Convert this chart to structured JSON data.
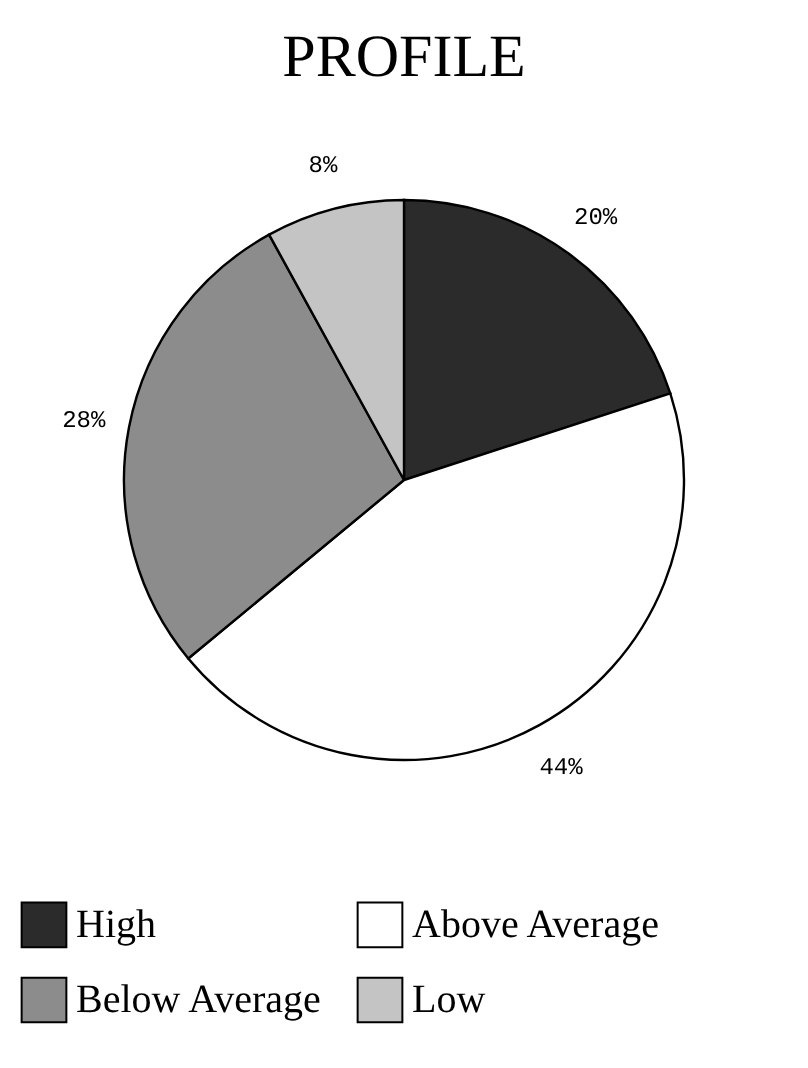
{
  "chart_data": {
    "type": "pie",
    "title": "PROFILE",
    "categories": [
      "High",
      "Above Average",
      "Below Average",
      "Low"
    ],
    "values": [
      20,
      44,
      28,
      8
    ],
    "colors": [
      "#2b2b2b",
      "#ffffff",
      "#8c8c8c",
      "#c4c4c4"
    ],
    "value_labels": [
      "20%",
      "44%",
      "28%",
      "8%"
    ],
    "legend": "bottom"
  }
}
